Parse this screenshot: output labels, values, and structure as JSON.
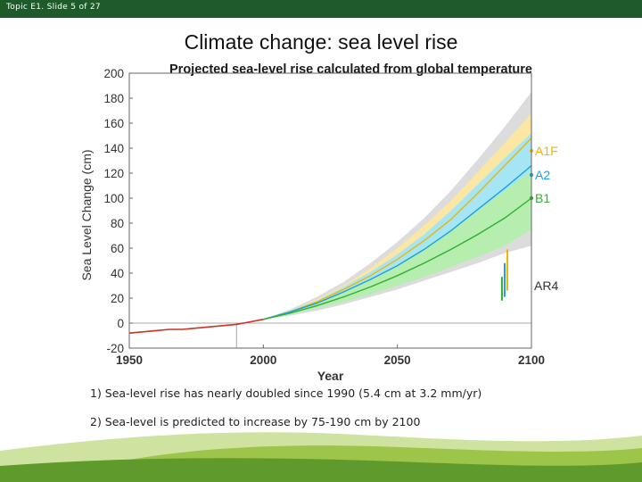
{
  "header": {
    "slide_label": "Topic E1. Slide 5 of 27"
  },
  "slide_title": "Climate change: sea level rise",
  "chart_data": {
    "type": "line",
    "title": "Projected sea-level rise calculated from global temperature",
    "xlabel": "Year",
    "ylabel": "Sea Level Change (cm)",
    "xlim": [
      1950,
      2100
    ],
    "ylim": [
      -20,
      200
    ],
    "x_ticks": [
      1950,
      2000,
      2050,
      2100
    ],
    "y_ticks": [
      -20,
      0,
      20,
      40,
      60,
      80,
      100,
      120,
      140,
      160,
      180,
      200
    ],
    "observed": {
      "x": [
        1950,
        1955,
        1960,
        1965,
        1970,
        1975,
        1980,
        1985,
        1990,
        1995,
        2000
      ],
      "y": [
        -8,
        -7,
        -6,
        -5,
        -5,
        -4,
        -3,
        -2,
        -1,
        1,
        3
      ]
    },
    "scenarios": [
      {
        "name": "A1F",
        "color": "#f0b400",
        "x": [
          2000,
          2010,
          2020,
          2030,
          2040,
          2050,
          2060,
          2070,
          2080,
          2090,
          2100
        ],
        "mid": [
          3,
          9,
          17,
          27,
          38,
          51,
          66,
          83,
          104,
          126,
          148
        ],
        "lower": [
          3,
          8,
          15,
          23,
          32,
          43,
          55,
          69,
          86,
          104,
          123
        ],
        "upper": [
          3,
          10,
          19,
          30,
          44,
          60,
          78,
          98,
          121,
          144,
          168
        ]
      },
      {
        "name": "A2",
        "color": "#1aa0e0",
        "x": [
          2000,
          2010,
          2020,
          2030,
          2040,
          2050,
          2060,
          2070,
          2080,
          2090,
          2100
        ],
        "mid": [
          3,
          9,
          16,
          25,
          35,
          46,
          59,
          74,
          91,
          108,
          126
        ],
        "lower": [
          3,
          8,
          14,
          21,
          29,
          38,
          48,
          59,
          72,
          86,
          101
        ],
        "upper": [
          3,
          10,
          18,
          29,
          41,
          55,
          71,
          90,
          111,
          132,
          152
        ]
      },
      {
        "name": "B1",
        "color": "#2fb02f",
        "x": [
          2000,
          2010,
          2020,
          2030,
          2040,
          2050,
          2060,
          2070,
          2080,
          2090,
          2100
        ],
        "mid": [
          3,
          8,
          14,
          21,
          29,
          38,
          48,
          59,
          71,
          84,
          100
        ],
        "lower": [
          3,
          7,
          12,
          17,
          23,
          30,
          37,
          45,
          53,
          62,
          75
        ],
        "upper": [
          3,
          9,
          16,
          25,
          35,
          47,
          60,
          74,
          90,
          106,
          122
        ]
      }
    ],
    "envelope": {
      "x": [
        2000,
        2010,
        2020,
        2030,
        2040,
        2050,
        2060,
        2070,
        2080,
        2090,
        2100
      ],
      "lower": [
        3,
        6,
        10,
        15,
        21,
        27,
        34,
        41,
        48,
        56,
        62
      ],
      "upper": [
        3,
        11,
        21,
        33,
        48,
        65,
        84,
        106,
        131,
        157,
        185
      ]
    },
    "ar4": {
      "label": "AR4",
      "bars": [
        {
          "x": 2089,
          "low": 18,
          "high": 37,
          "color": "#2fb02f"
        },
        {
          "x": 2090,
          "low": 21,
          "high": 48,
          "color": "#1aa0e0"
        },
        {
          "x": 2091,
          "low": 26,
          "high": 59,
          "color": "#f0b400"
        }
      ]
    },
    "grid": false,
    "legend_placement": "right, beside line ends"
  },
  "bullets": [
    "1) Sea-level rise has nearly doubled  since 1990 (5.4 cm at 3.2 mm/yr)",
    "2)  Sea-level is predicted to increase by 75-190 cm by 2100"
  ]
}
